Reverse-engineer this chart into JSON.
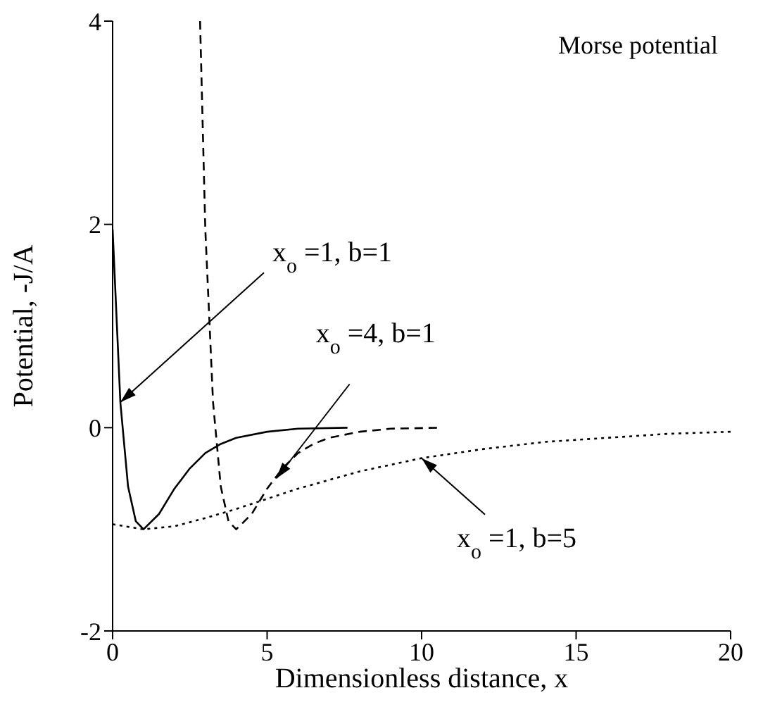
{
  "chart_data": {
    "type": "line",
    "title": "Morse potential",
    "xlabel": "Dimensionless distance, x",
    "ylabel": "Potential, -J/A",
    "xlim": [
      0,
      20
    ],
    "xticks": [
      0,
      5,
      10,
      15,
      20
    ],
    "ylim": [
      -2,
      4
    ],
    "yticks": [
      -2,
      0,
      2,
      4
    ],
    "marker": "none",
    "series": [
      {
        "color": "#000000",
        "line_style": "solid",
        "x": [
          0,
          0.25,
          0.5,
          0.75,
          1,
          1.5,
          2,
          2.5,
          3,
          3.5,
          4,
          5,
          6,
          7.6
        ],
        "values": [
          1.95,
          0.25,
          -0.58,
          -0.92,
          -1,
          -0.85,
          -0.6,
          -0.4,
          -0.25,
          -0.16,
          -0.1,
          -0.04,
          -0.01,
          0
        ]
      },
      {
        "color": "#000000",
        "line_style": "dashed",
        "x": [
          2.83,
          3,
          3.25,
          3.5,
          3.75,
          4,
          4.5,
          5,
          5.5,
          6,
          6.5,
          7,
          8,
          9,
          10.6
        ],
        "values": [
          4,
          1.95,
          0.25,
          -0.58,
          -0.92,
          -1,
          -0.85,
          -0.6,
          -0.4,
          -0.25,
          -0.16,
          -0.1,
          -0.04,
          -0.01,
          0
        ]
      },
      {
        "color": "#000000",
        "line_style": "dotted",
        "x": [
          0,
          1,
          2,
          3,
          4,
          5,
          6,
          8,
          10,
          12,
          14,
          16,
          18,
          20
        ],
        "values": [
          -0.95,
          -1,
          -0.97,
          -0.89,
          -0.8,
          -0.7,
          -0.6,
          -0.43,
          -0.3,
          -0.21,
          -0.14,
          -0.1,
          -0.06,
          -0.04
        ]
      }
    ],
    "annotations": [
      {
        "text": "x$_{o}$=1, b=1",
        "x": 0.25,
        "y": 0.25
      },
      {
        "text": "x$_{o}$=4, b=1",
        "x": 5.3,
        "y": -0.5
      },
      {
        "text": "x$_{o}$=1, b=5",
        "x": 10,
        "y": -0.3
      }
    ]
  }
}
